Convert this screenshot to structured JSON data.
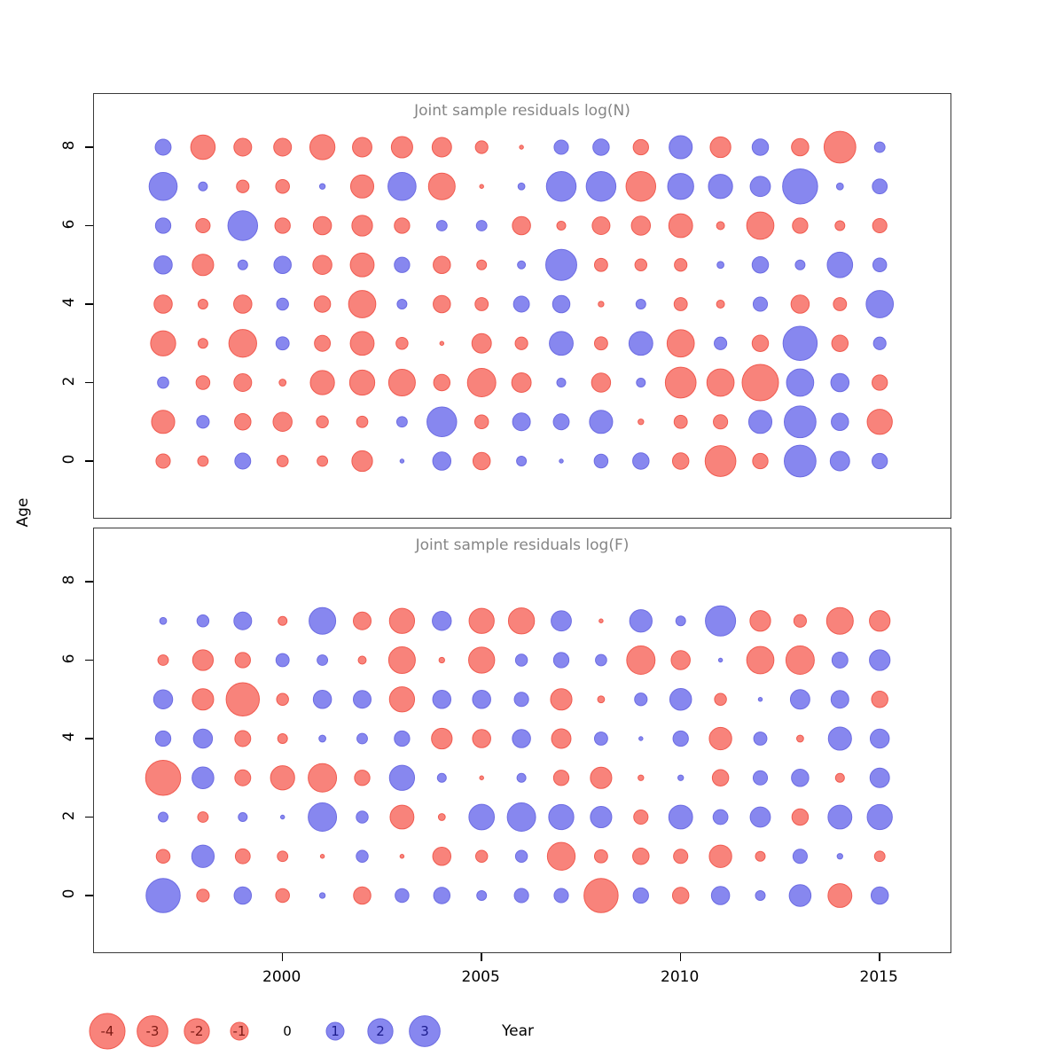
{
  "figure": {
    "ylab": "Age",
    "xlab": "Year"
  },
  "panels": [
    {
      "title": "Joint sample residuals log(N)"
    },
    {
      "title": "Joint sample residuals log(F)"
    }
  ],
  "axes": {
    "x_ticks": [
      "2000",
      "2005",
      "2010",
      "2015"
    ],
    "y_ticks": [
      "0",
      "2",
      "4",
      "6",
      "8"
    ]
  },
  "legend": {
    "items": [
      {
        "label": "-4",
        "value": -4
      },
      {
        "label": "-3",
        "value": -3
      },
      {
        "label": "-2",
        "value": -2
      },
      {
        "label": "-1",
        "value": -1
      },
      {
        "label": "0",
        "value": 0
      },
      {
        "label": "1",
        "value": 1
      },
      {
        "label": "2",
        "value": 2
      },
      {
        "label": "3",
        "value": 3
      }
    ]
  },
  "colors": {
    "negative_fill": "#f8837b",
    "negative_border": "#f05b50",
    "positive_fill": "#8787ef",
    "positive_border": "#6c6ce2",
    "negative_text": "#7d1a14",
    "positive_text": "#1c1c8c",
    "zero_text": "#000000",
    "title": "#858585"
  },
  "chart_data": [
    {
      "type": "scatter",
      "subtype": "bubble-residuals",
      "title": "Joint sample residuals log(N)",
      "xlabel": "Year",
      "ylabel": "Age",
      "x": [
        1997,
        1998,
        1999,
        2000,
        2001,
        2002,
        2003,
        2004,
        2005,
        2006,
        2007,
        2008,
        2009,
        2010,
        2011,
        2012,
        2013,
        2014,
        2015
      ],
      "xlim": [
        1996.3,
        2015.9
      ],
      "ylim": [
        -1.5,
        9
      ],
      "grid": false,
      "encoding": "bubble radius = 10*sqrt(|value|) px; red = negative, blue = positive",
      "values_by_age": {
        "8": [
          0.8,
          -1.9,
          -1.0,
          -1.0,
          -2.0,
          -1.2,
          -1.45,
          -1.2,
          -0.5,
          -0.05,
          0.65,
          0.85,
          -0.75,
          1.7,
          -1.35,
          0.85,
          -0.95,
          -3.2,
          0.35
        ],
        "7": [
          2.5,
          0.25,
          -0.5,
          -0.6,
          0.1,
          -1.7,
          2.5,
          -2.25,
          -0.05,
          0.15,
          2.8,
          2.8,
          -2.8,
          2.15,
          1.85,
          1.3,
          3.9,
          0.15,
          0.7
        ],
        "6": [
          0.75,
          -0.65,
          2.8,
          -0.75,
          -1.05,
          -1.35,
          -0.75,
          0.35,
          0.35,
          -1.05,
          -0.25,
          -1.0,
          -1.15,
          -1.8,
          -0.2,
          -2.35,
          -0.75,
          -0.3,
          -0.65
        ],
        "5": [
          1.05,
          -1.45,
          0.3,
          0.95,
          -1.15,
          -1.8,
          0.75,
          -0.95,
          -0.3,
          0.2,
          3.05,
          -0.55,
          -0.45,
          -0.5,
          0.15,
          0.85,
          0.3,
          2.05,
          0.6
        ],
        "4": [
          -1.05,
          -0.3,
          -1.05,
          0.45,
          -0.85,
          -2.35,
          0.3,
          -0.95,
          -0.55,
          0.8,
          0.95,
          -0.1,
          0.3,
          -0.55,
          -0.2,
          0.65,
          -1.05,
          -0.55,
          2.35
        ],
        "3": [
          -2.0,
          -0.3,
          -2.45,
          0.55,
          -0.8,
          -1.8,
          -0.45,
          -0.05,
          -1.2,
          -0.5,
          1.8,
          -0.55,
          1.8,
          -2.35,
          0.5,
          -0.85,
          3.7,
          -0.85,
          0.5
        ],
        "2": [
          0.4,
          -0.6,
          -1.0,
          -0.15,
          -1.85,
          -2.0,
          -2.25,
          -0.85,
          -2.55,
          -1.2,
          0.25,
          -1.15,
          0.25,
          -3.0,
          -2.35,
          -4.2,
          2.35,
          1.05,
          -0.75
        ],
        "1": [
          -1.7,
          0.5,
          -0.85,
          -1.15,
          -0.45,
          -0.4,
          0.35,
          2.8,
          -0.6,
          1.0,
          0.8,
          1.7,
          -0.1,
          -0.55,
          -0.65,
          1.7,
          3.2,
          0.95,
          -2.0
        ],
        "0": [
          -0.65,
          -0.35,
          0.8,
          -0.4,
          -0.35,
          -1.35,
          0.05,
          1.05,
          -0.95,
          0.3,
          0.05,
          0.6,
          0.85,
          -0.85,
          -3.0,
          -0.75,
          3.2,
          1.2,
          0.75
        ]
      }
    },
    {
      "type": "scatter",
      "subtype": "bubble-residuals",
      "title": "Joint sample residuals log(F)",
      "xlabel": "Year",
      "ylabel": "Age",
      "x": [
        1997,
        1998,
        1999,
        2000,
        2001,
        2002,
        2003,
        2004,
        2005,
        2006,
        2007,
        2008,
        2009,
        2010,
        2011,
        2012,
        2013,
        2014,
        2015
      ],
      "xlim": [
        1996.3,
        2015.9
      ],
      "ylim": [
        -1.5,
        9
      ],
      "grid": false,
      "encoding": "bubble radius = 10*sqrt(|value|) px; red = negative, blue = positive",
      "values_by_age": {
        "7": [
          0.15,
          0.45,
          1.0,
          -0.25,
          2.25,
          -1.0,
          -2.0,
          1.15,
          -2.0,
          -2.15,
          1.3,
          -0.05,
          1.6,
          0.3,
          2.9,
          -1.35,
          -0.5,
          -2.25,
          -1.35
        ],
        "6": [
          -0.35,
          -1.35,
          -0.75,
          0.55,
          0.35,
          -0.2,
          -2.25,
          -0.1,
          -2.15,
          0.45,
          0.75,
          0.4,
          -2.55,
          -1.15,
          0.05,
          -2.35,
          -2.55,
          0.8,
          1.35
        ],
        "5": [
          1.15,
          -1.45,
          -3.5,
          -0.45,
          1.05,
          1.0,
          -2.0,
          1.05,
          1.05,
          0.65,
          -1.45,
          -0.15,
          0.5,
          1.5,
          -0.45,
          0.05,
          1.2,
          1.0,
          -0.85
        ],
        "4": [
          0.75,
          1.15,
          -0.8,
          -0.3,
          0.15,
          0.35,
          0.75,
          -1.35,
          -1.05,
          1.05,
          -1.2,
          0.55,
          0.05,
          0.75,
          -1.6,
          0.55,
          -0.15,
          1.7,
          1.15
        ],
        "3": [
          -3.9,
          1.5,
          -0.8,
          -1.85,
          -2.55,
          -0.75,
          2.0,
          0.25,
          -0.05,
          0.25,
          -0.75,
          -1.45,
          -0.1,
          0.1,
          -0.85,
          0.65,
          0.95,
          -0.25,
          1.2
        ],
        "2": [
          0.3,
          -0.35,
          0.25,
          0.05,
          2.55,
          0.45,
          -1.8,
          -0.15,
          2.05,
          2.55,
          2.0,
          1.45,
          -0.65,
          1.8,
          0.7,
          1.3,
          -0.85,
          1.8,
          2.0
        ],
        "1": [
          -0.6,
          1.6,
          -0.7,
          -0.35,
          -0.05,
          0.45,
          -0.05,
          -1.05,
          -0.45,
          0.45,
          -2.45,
          -0.55,
          -0.85,
          -0.65,
          -1.6,
          -0.3,
          0.65,
          0.1,
          -0.35
        ],
        "0": [
          3.7,
          -0.5,
          0.95,
          -0.6,
          0.1,
          -0.95,
          0.6,
          0.85,
          0.3,
          0.65,
          0.65,
          -3.7,
          0.75,
          -0.85,
          1.05,
          0.3,
          1.5,
          -1.8,
          0.95
        ]
      }
    }
  ]
}
